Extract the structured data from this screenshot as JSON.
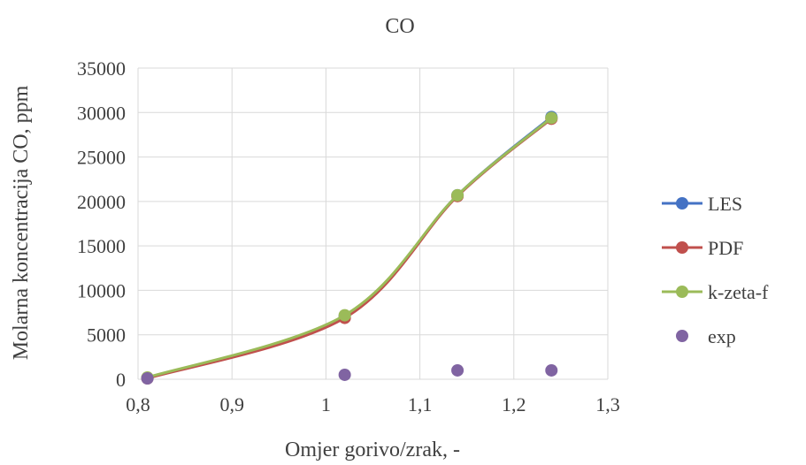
{
  "chart_data": {
    "type": "line",
    "title": "CO",
    "xlabel": "Omjer gorivo/zrak, -",
    "ylabel": "Molarna koncentracija CO, ppm",
    "xlim": [
      0.8,
      1.3
    ],
    "ylim": [
      0,
      35000
    ],
    "xticks": [
      "0,8",
      "0,9",
      "1",
      "1,1",
      "1,2",
      "1,3"
    ],
    "yticks": [
      "0",
      "5000",
      "10000",
      "15000",
      "20000",
      "25000",
      "30000",
      "35000"
    ],
    "grid": true,
    "smooth": true,
    "legend_position": "right",
    "series": [
      {
        "name": "LES",
        "color": "#4472c4",
        "style": "line-markers",
        "x": [
          0.81,
          1.02,
          1.14,
          1.24
        ],
        "y": [
          150,
          7100,
          20700,
          29500
        ]
      },
      {
        "name": "PDF",
        "color": "#c0504d",
        "style": "line-markers",
        "x": [
          0.81,
          1.02,
          1.14,
          1.24
        ],
        "y": [
          100,
          6900,
          20600,
          29300
        ]
      },
      {
        "name": "k-zeta-f",
        "color": "#9bbb59",
        "style": "line-markers",
        "x": [
          0.81,
          1.02,
          1.14,
          1.24
        ],
        "y": [
          200,
          7200,
          20700,
          29400
        ]
      },
      {
        "name": "exp",
        "color": "#8064a2",
        "style": "markers",
        "x": [
          0.81,
          1.02,
          1.14,
          1.24
        ],
        "y": [
          100,
          500,
          1000,
          1000
        ]
      }
    ]
  }
}
